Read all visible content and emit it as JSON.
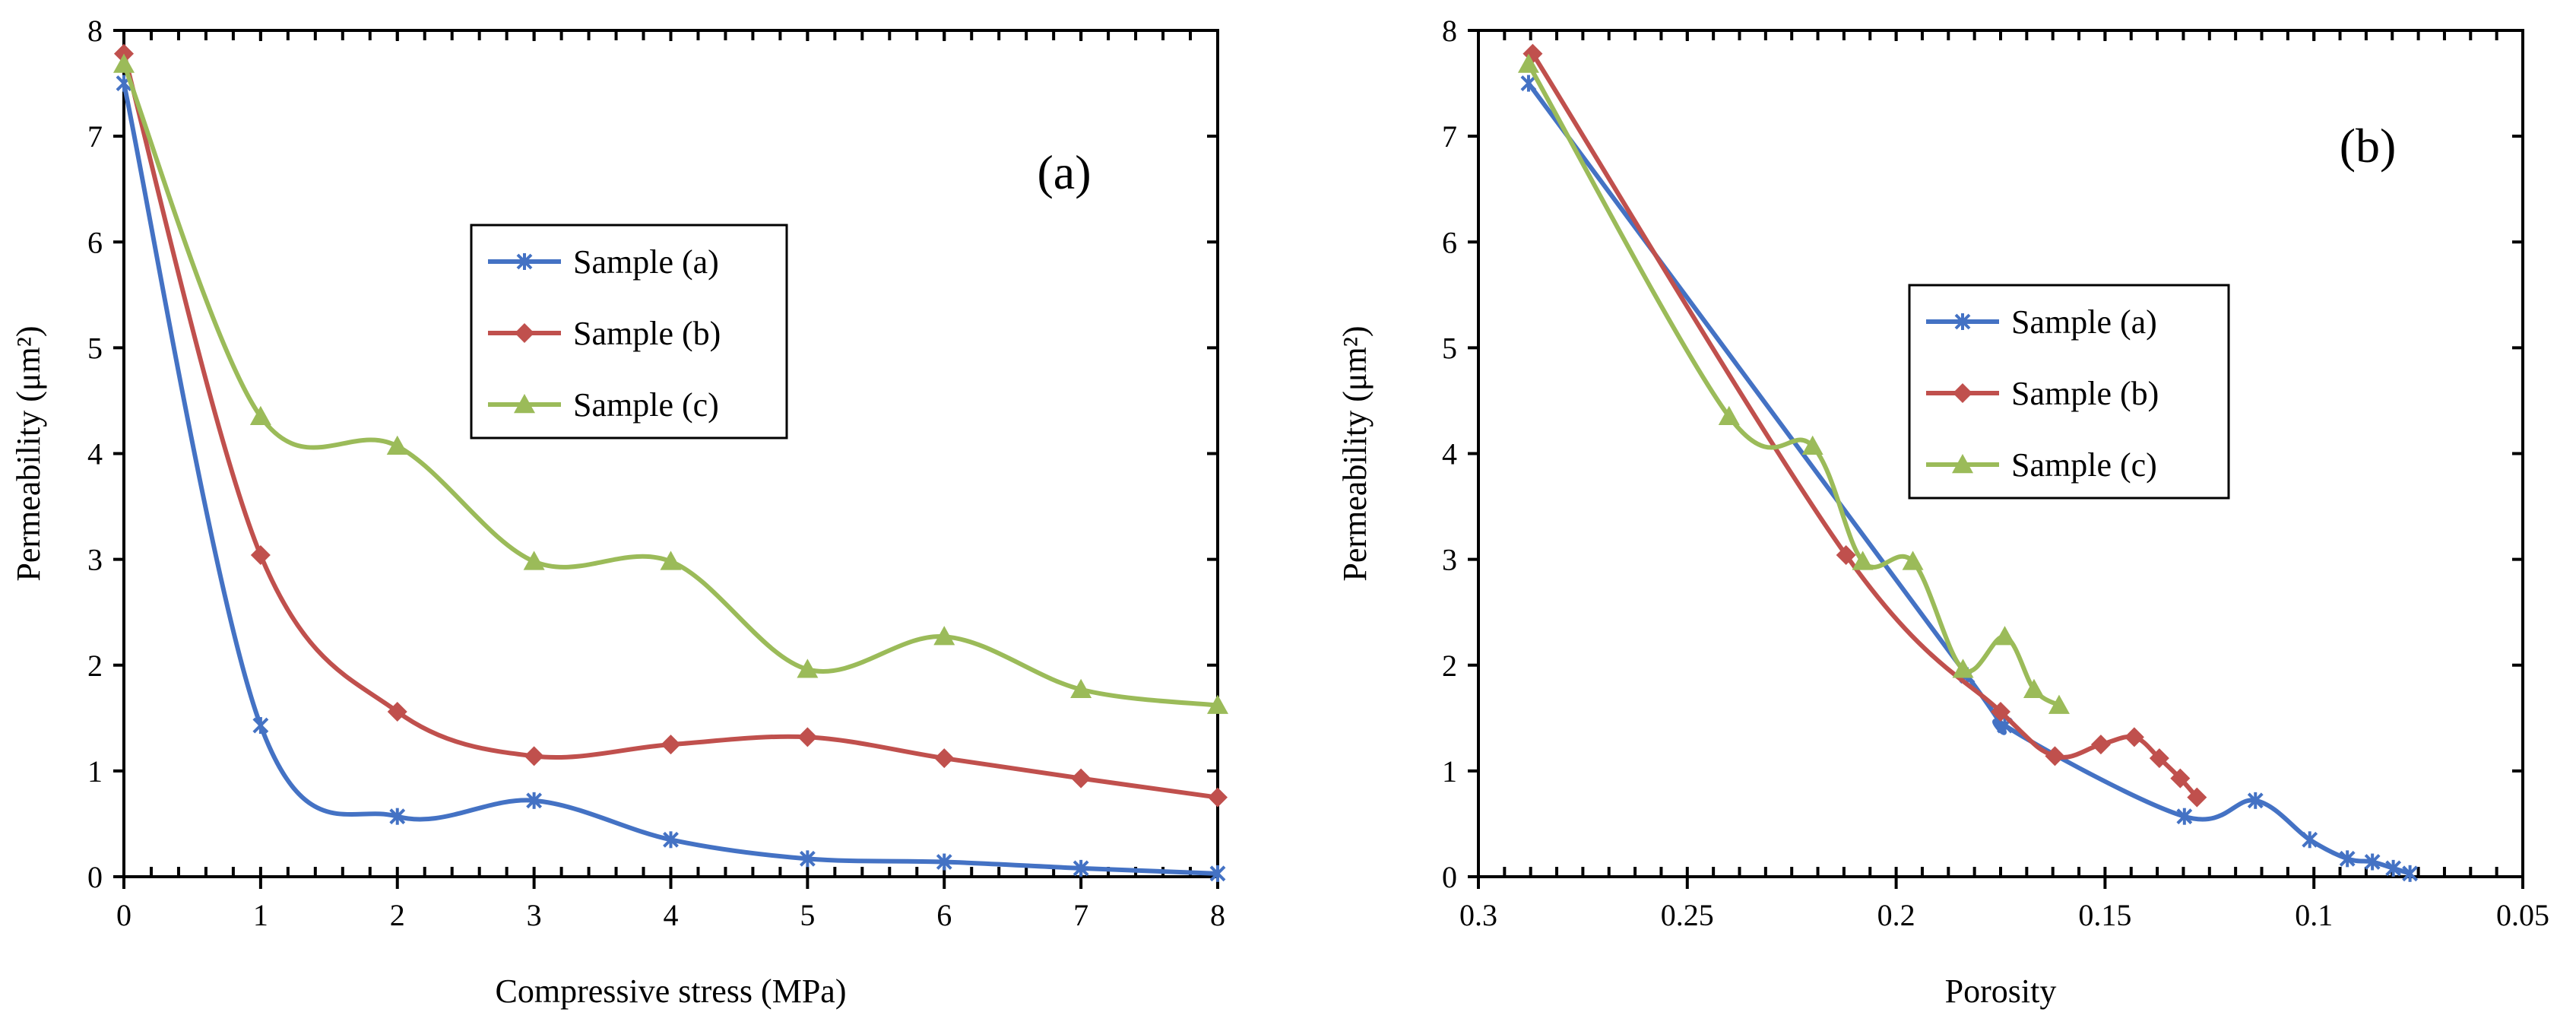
{
  "chart_data": [
    {
      "type": "line",
      "panel_label": "(a)",
      "xlabel": "Compressive stress (MPa)",
      "ylabel": "Permeability (μm²)",
      "xlim": [
        0,
        8
      ],
      "ylim": [
        0,
        8
      ],
      "xticks": [
        "0",
        "1",
        "2",
        "3",
        "4",
        "5",
        "6",
        "7",
        "8"
      ],
      "yticks": [
        "0",
        "1",
        "2",
        "3",
        "4",
        "5",
        "6",
        "7",
        "8"
      ],
      "x_reversed": false,
      "legend_position": "center",
      "grid": false,
      "series": [
        {
          "name": "Sample (a)",
          "color": "#4472C4",
          "marker": "star",
          "x": [
            0,
            1,
            2,
            3,
            4,
            5,
            6,
            7,
            8
          ],
          "y": [
            7.5,
            1.43,
            0.57,
            0.72,
            0.35,
            0.17,
            0.14,
            0.08,
            0.03
          ]
        },
        {
          "name": "Sample (b)",
          "color": "#C0504D",
          "marker": "diamond",
          "x": [
            0,
            1,
            2,
            3,
            4,
            5,
            6,
            7,
            8
          ],
          "y": [
            7.78,
            3.04,
            1.56,
            1.14,
            1.25,
            1.32,
            1.12,
            0.93,
            0.75
          ]
        },
        {
          "name": "Sample (c)",
          "color": "#9BBB59",
          "marker": "triangle",
          "x": [
            0,
            1,
            2,
            3,
            4,
            5,
            6,
            7,
            8
          ],
          "y": [
            7.68,
            4.35,
            4.07,
            2.98,
            2.98,
            1.96,
            2.27,
            1.77,
            1.62
          ]
        }
      ]
    },
    {
      "type": "line",
      "panel_label": "(b)",
      "xlabel": "Porosity",
      "ylabel": "Permeability (μm²)",
      "xlim": [
        0.05,
        0.3
      ],
      "ylim": [
        0,
        8
      ],
      "xticks": [
        "0.3",
        "0.25",
        "0.2",
        "0.15",
        "0.1",
        "0.05"
      ],
      "yticks": [
        "0",
        "1",
        "2",
        "3",
        "4",
        "5",
        "6",
        "7",
        "8"
      ],
      "x_reversed": true,
      "legend_position": "center",
      "grid": false,
      "series": [
        {
          "name": "Sample (a)",
          "color": "#4472C4",
          "marker": "star",
          "x": [
            0.288,
            0.183,
            0.174,
            0.131,
            0.114,
            0.101,
            0.092,
            0.086,
            0.081,
            0.077
          ],
          "y": [
            7.5,
            1.9,
            1.43,
            0.57,
            0.72,
            0.35,
            0.17,
            0.14,
            0.08,
            0.03
          ]
        },
        {
          "name": "Sample (b)",
          "color": "#C0504D",
          "marker": "diamond",
          "x": [
            0.287,
            0.212,
            0.175,
            0.162,
            0.151,
            0.143,
            0.137,
            0.132,
            0.128
          ],
          "y": [
            7.78,
            3.04,
            1.56,
            1.14,
            1.25,
            1.32,
            1.12,
            0.93,
            0.75
          ]
        },
        {
          "name": "Sample (c)",
          "color": "#9BBB59",
          "marker": "triangle",
          "x": [
            0.288,
            0.24,
            0.22,
            0.208,
            0.196,
            0.184,
            0.174,
            0.167,
            0.161
          ],
          "y": [
            7.68,
            4.35,
            4.07,
            2.98,
            2.98,
            1.96,
            2.27,
            1.77,
            1.62
          ]
        }
      ]
    }
  ]
}
